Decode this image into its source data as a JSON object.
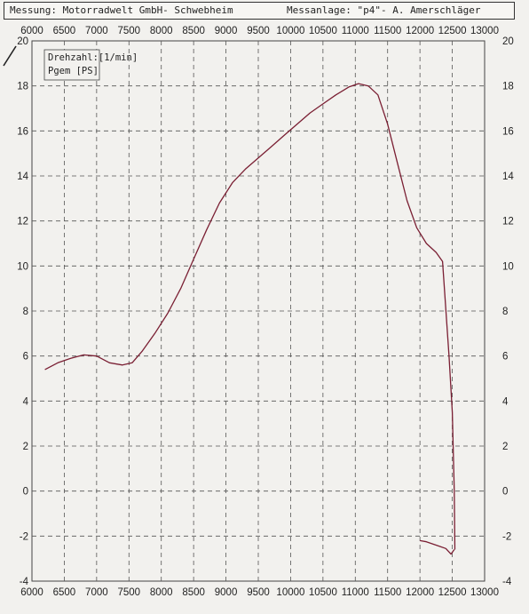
{
  "header": {
    "left": "Messung: Motorradwelt GmbH- Schwebheim",
    "right": "Messanlage: \"p4\"- A. Amerschläger"
  },
  "chart_data": {
    "type": "line",
    "grid": true,
    "legend": [
      "Drehzahl:[1/min]",
      "Pgem [PS]"
    ],
    "x_ticks_top": [
      "6000",
      "6500",
      "7000",
      "7500",
      "8000",
      "8500",
      "9000",
      "9500",
      "10000",
      "10500",
      "11000",
      "11500",
      "12000",
      "12500",
      "13000"
    ],
    "x_ticks_bottom": [
      "6000",
      "6500",
      "7000",
      "7500",
      "8000",
      "8500",
      "9000",
      "9500",
      "10000",
      "10500",
      "11000",
      "11500",
      "12000",
      "12500",
      "13000"
    ],
    "y_ticks_left": [
      "20",
      "18",
      "16",
      "14",
      "12",
      "10",
      "8",
      "6",
      "4",
      "2",
      "0",
      "-2",
      "-4"
    ],
    "y_ticks_right": [
      "20",
      "18",
      "16",
      "14",
      "12",
      "10",
      "8",
      "6",
      "4",
      "2",
      "0",
      "-2",
      "-4"
    ],
    "xlim": [
      6000,
      13000
    ],
    "ylim": [
      -4,
      20
    ],
    "series": [
      {
        "color": "#7a1f33",
        "points": [
          [
            6200,
            5.4
          ],
          [
            6400,
            5.7
          ],
          [
            6600,
            5.9
          ],
          [
            6800,
            6.05
          ],
          [
            7000,
            6.0
          ],
          [
            7200,
            5.7
          ],
          [
            7400,
            5.6
          ],
          [
            7550,
            5.7
          ],
          [
            7700,
            6.2
          ],
          [
            7900,
            7.0
          ],
          [
            8100,
            7.9
          ],
          [
            8300,
            9.0
          ],
          [
            8500,
            10.3
          ],
          [
            8700,
            11.6
          ],
          [
            8900,
            12.8
          ],
          [
            9100,
            13.7
          ],
          [
            9300,
            14.3
          ],
          [
            9500,
            14.8
          ],
          [
            9700,
            15.3
          ],
          [
            9900,
            15.8
          ],
          [
            10100,
            16.3
          ],
          [
            10300,
            16.8
          ],
          [
            10500,
            17.2
          ],
          [
            10700,
            17.6
          ],
          [
            10900,
            17.95
          ],
          [
            11050,
            18.1
          ],
          [
            11200,
            18.0
          ],
          [
            11350,
            17.6
          ],
          [
            11500,
            16.3
          ],
          [
            11650,
            14.6
          ],
          [
            11800,
            12.9
          ],
          [
            11950,
            11.7
          ],
          [
            12100,
            11.0
          ],
          [
            12250,
            10.6
          ],
          [
            12350,
            10.2
          ],
          [
            12450,
            6.0
          ],
          [
            12500,
            3.5
          ],
          [
            12530,
            0.0
          ],
          [
            12540,
            -2.6
          ]
        ]
      },
      {
        "color": "#7a1f33",
        "points": [
          [
            12000,
            -2.2
          ],
          [
            12100,
            -2.25
          ],
          [
            12200,
            -2.35
          ],
          [
            12300,
            -2.45
          ],
          [
            12400,
            -2.55
          ],
          [
            12480,
            -2.8
          ],
          [
            12530,
            -2.6
          ]
        ]
      }
    ]
  }
}
